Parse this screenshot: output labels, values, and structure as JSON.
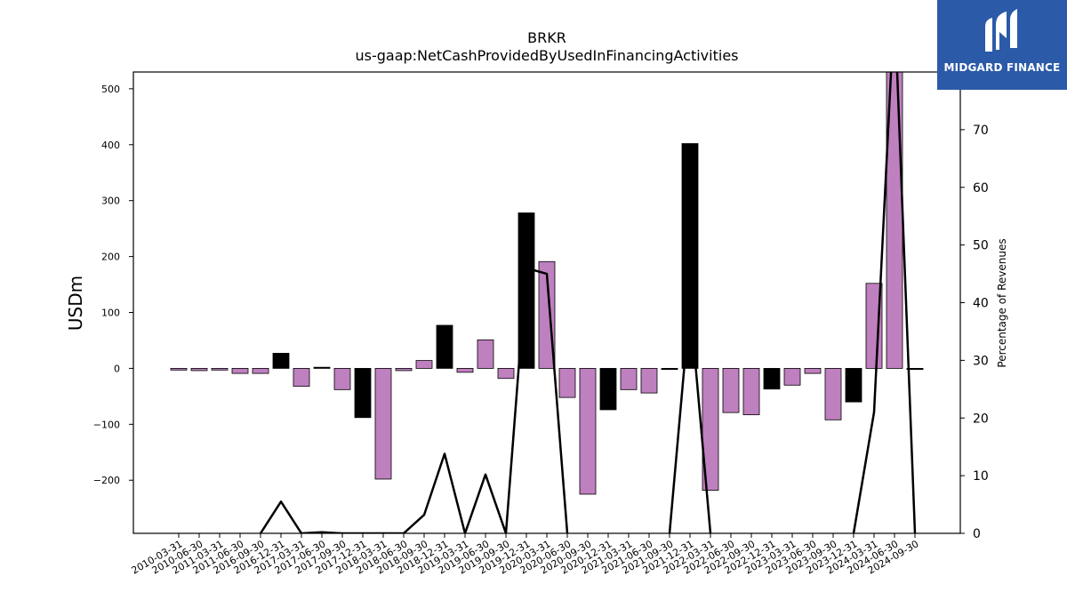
{
  "chart_data": {
    "type": "bar",
    "title": "BRKR",
    "subtitle": "us-gaap:NetCashProvidedByUsedInFinancingActivities",
    "ylabel": "USDm",
    "y2label": "Percentage of Revenues",
    "ylim": [
      -295,
      530
    ],
    "y2lim": [
      0,
      80
    ],
    "yticks": [
      -200,
      -100,
      0,
      100,
      200,
      300,
      400,
      500
    ],
    "y2ticks": [
      0,
      10,
      20,
      30,
      40,
      50,
      60,
      70
    ],
    "categories": [
      "2010-03-31",
      "2010-06-30",
      "2011-03-31",
      "2011-06-30",
      "2016-09-30",
      "2016-12-31",
      "2017-03-31",
      "2017-06-30",
      "2017-09-30",
      "2017-12-31",
      "2018-03-31",
      "2018-06-30",
      "2018-09-30",
      "2018-12-31",
      "2019-03-31",
      "2019-06-30",
      "2019-09-30",
      "2019-12-31",
      "2020-03-31",
      "2020-06-30",
      "2020-09-30",
      "2020-12-31",
      "2021-03-31",
      "2021-06-30",
      "2021-09-30",
      "2021-12-31",
      "2022-03-31",
      "2022-06-30",
      "2022-09-30",
      "2022-12-31",
      "2023-03-31",
      "2023-06-30",
      "2023-09-30",
      "2023-12-31",
      "2024-03-31",
      "2024-06-30",
      "2024-09-30"
    ],
    "values": [
      -3,
      -4,
      -3,
      -9,
      -9,
      27,
      -32,
      2,
      -38,
      -88,
      -198,
      -4,
      14,
      77,
      -7,
      51,
      -18,
      278,
      191,
      -52,
      -225,
      -74,
      -38,
      -44,
      -2,
      402,
      -218,
      -79,
      -83,
      -37,
      -30,
      -9,
      -92,
      -60,
      152,
      540,
      -2
    ],
    "bar_colors": [
      "#bf80bf",
      "#bf80bf",
      "#bf80bf",
      "#bf80bf",
      "#bf80bf",
      "#000000",
      "#bf80bf",
      "#000000",
      "#bf80bf",
      "#000000",
      "#bf80bf",
      "#bf80bf",
      "#bf80bf",
      "#000000",
      "#bf80bf",
      "#bf80bf",
      "#bf80bf",
      "#000000",
      "#bf80bf",
      "#bf80bf",
      "#bf80bf",
      "#000000",
      "#bf80bf",
      "#bf80bf",
      "#000000",
      "#000000",
      "#bf80bf",
      "#bf80bf",
      "#bf80bf",
      "#000000",
      "#bf80bf",
      "#bf80bf",
      "#bf80bf",
      "#000000",
      "#bf80bf",
      "#bf80bf",
      "#000000"
    ],
    "line": [
      null,
      null,
      null,
      null,
      0,
      5.5,
      0,
      0.2,
      0,
      0,
      0,
      0,
      3.2,
      13.8,
      0,
      10.2,
      0,
      46,
      45,
      0,
      null,
      null,
      null,
      null,
      0,
      40,
      0,
      null,
      null,
      null,
      null,
      null,
      null,
      0,
      21,
      92,
      0
    ],
    "colors": {
      "bar_positive_series": "#bf80bf",
      "bar_alt": "#000000",
      "line": "#000000"
    }
  },
  "logo": {
    "text": "MIDGARD FINANCE",
    "background": "#2b5aa8"
  }
}
